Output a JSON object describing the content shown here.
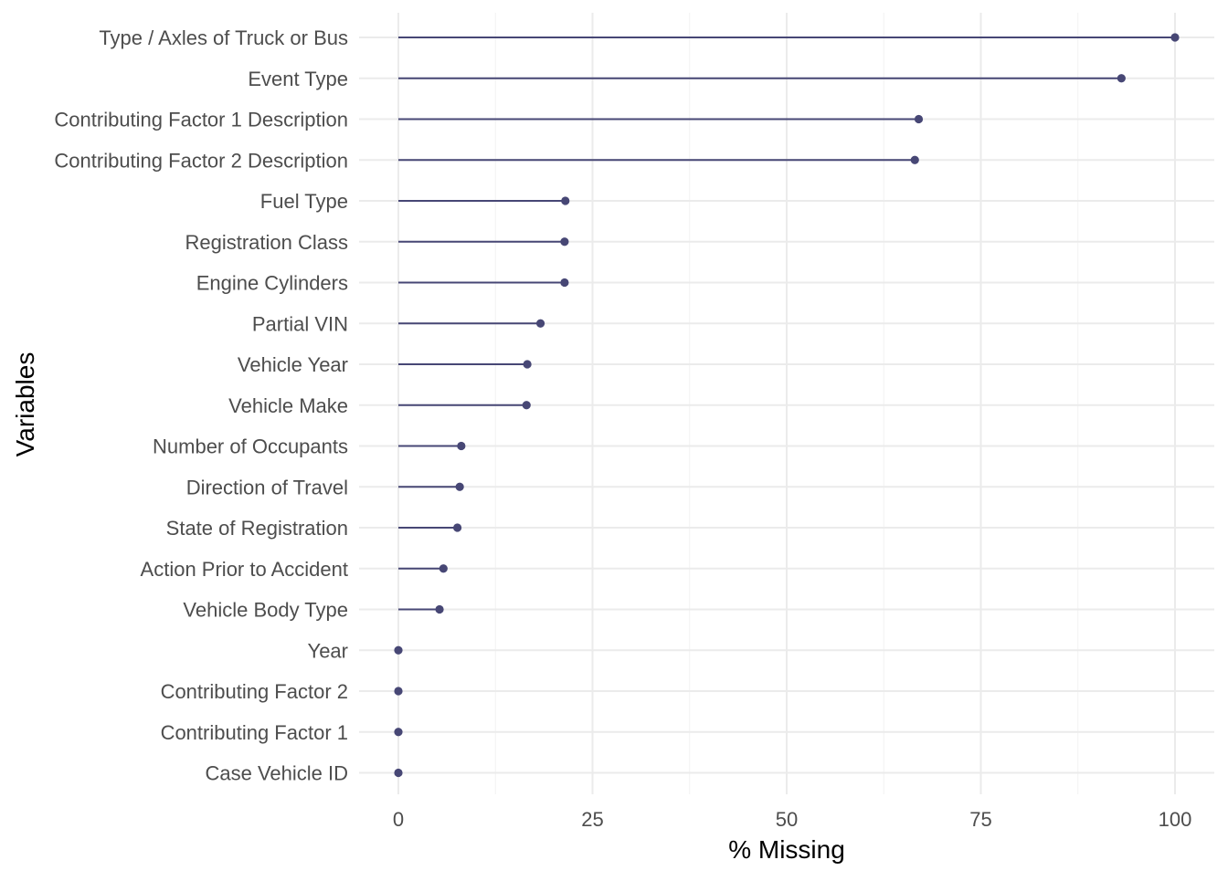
{
  "chart_data": {
    "type": "lollipop",
    "xlabel": "% Missing",
    "ylabel": "Variables",
    "xlim": [
      0,
      100
    ],
    "x_ticks": [
      0,
      25,
      50,
      75,
      100
    ],
    "grid": true,
    "legend": "none",
    "colors": {
      "marker": "#474775",
      "grid_major": "#ebebeb",
      "grid_minor": "#f2f2f2",
      "tick_text": "#4d4d4d"
    },
    "categories": [
      "Type / Axles of Truck or Bus",
      "Event Type",
      "Contributing Factor 1 Description",
      "Contributing Factor 2 Description",
      "Fuel Type",
      "Registration Class",
      "Engine Cylinders",
      "Partial VIN",
      "Vehicle Year",
      "Vehicle Make",
      "Number of Occupants",
      "Direction of Travel",
      "State of Registration",
      "Action Prior to Accident",
      "Vehicle Body Type",
      "Year",
      "Contributing Factor 2",
      "Contributing Factor 1",
      "Case Vehicle ID"
    ],
    "values": [
      100,
      93.1,
      67.0,
      66.5,
      21.5,
      21.4,
      21.4,
      18.3,
      16.6,
      16.5,
      8.1,
      7.9,
      7.6,
      5.8,
      5.3,
      0,
      0,
      0,
      0
    ]
  }
}
